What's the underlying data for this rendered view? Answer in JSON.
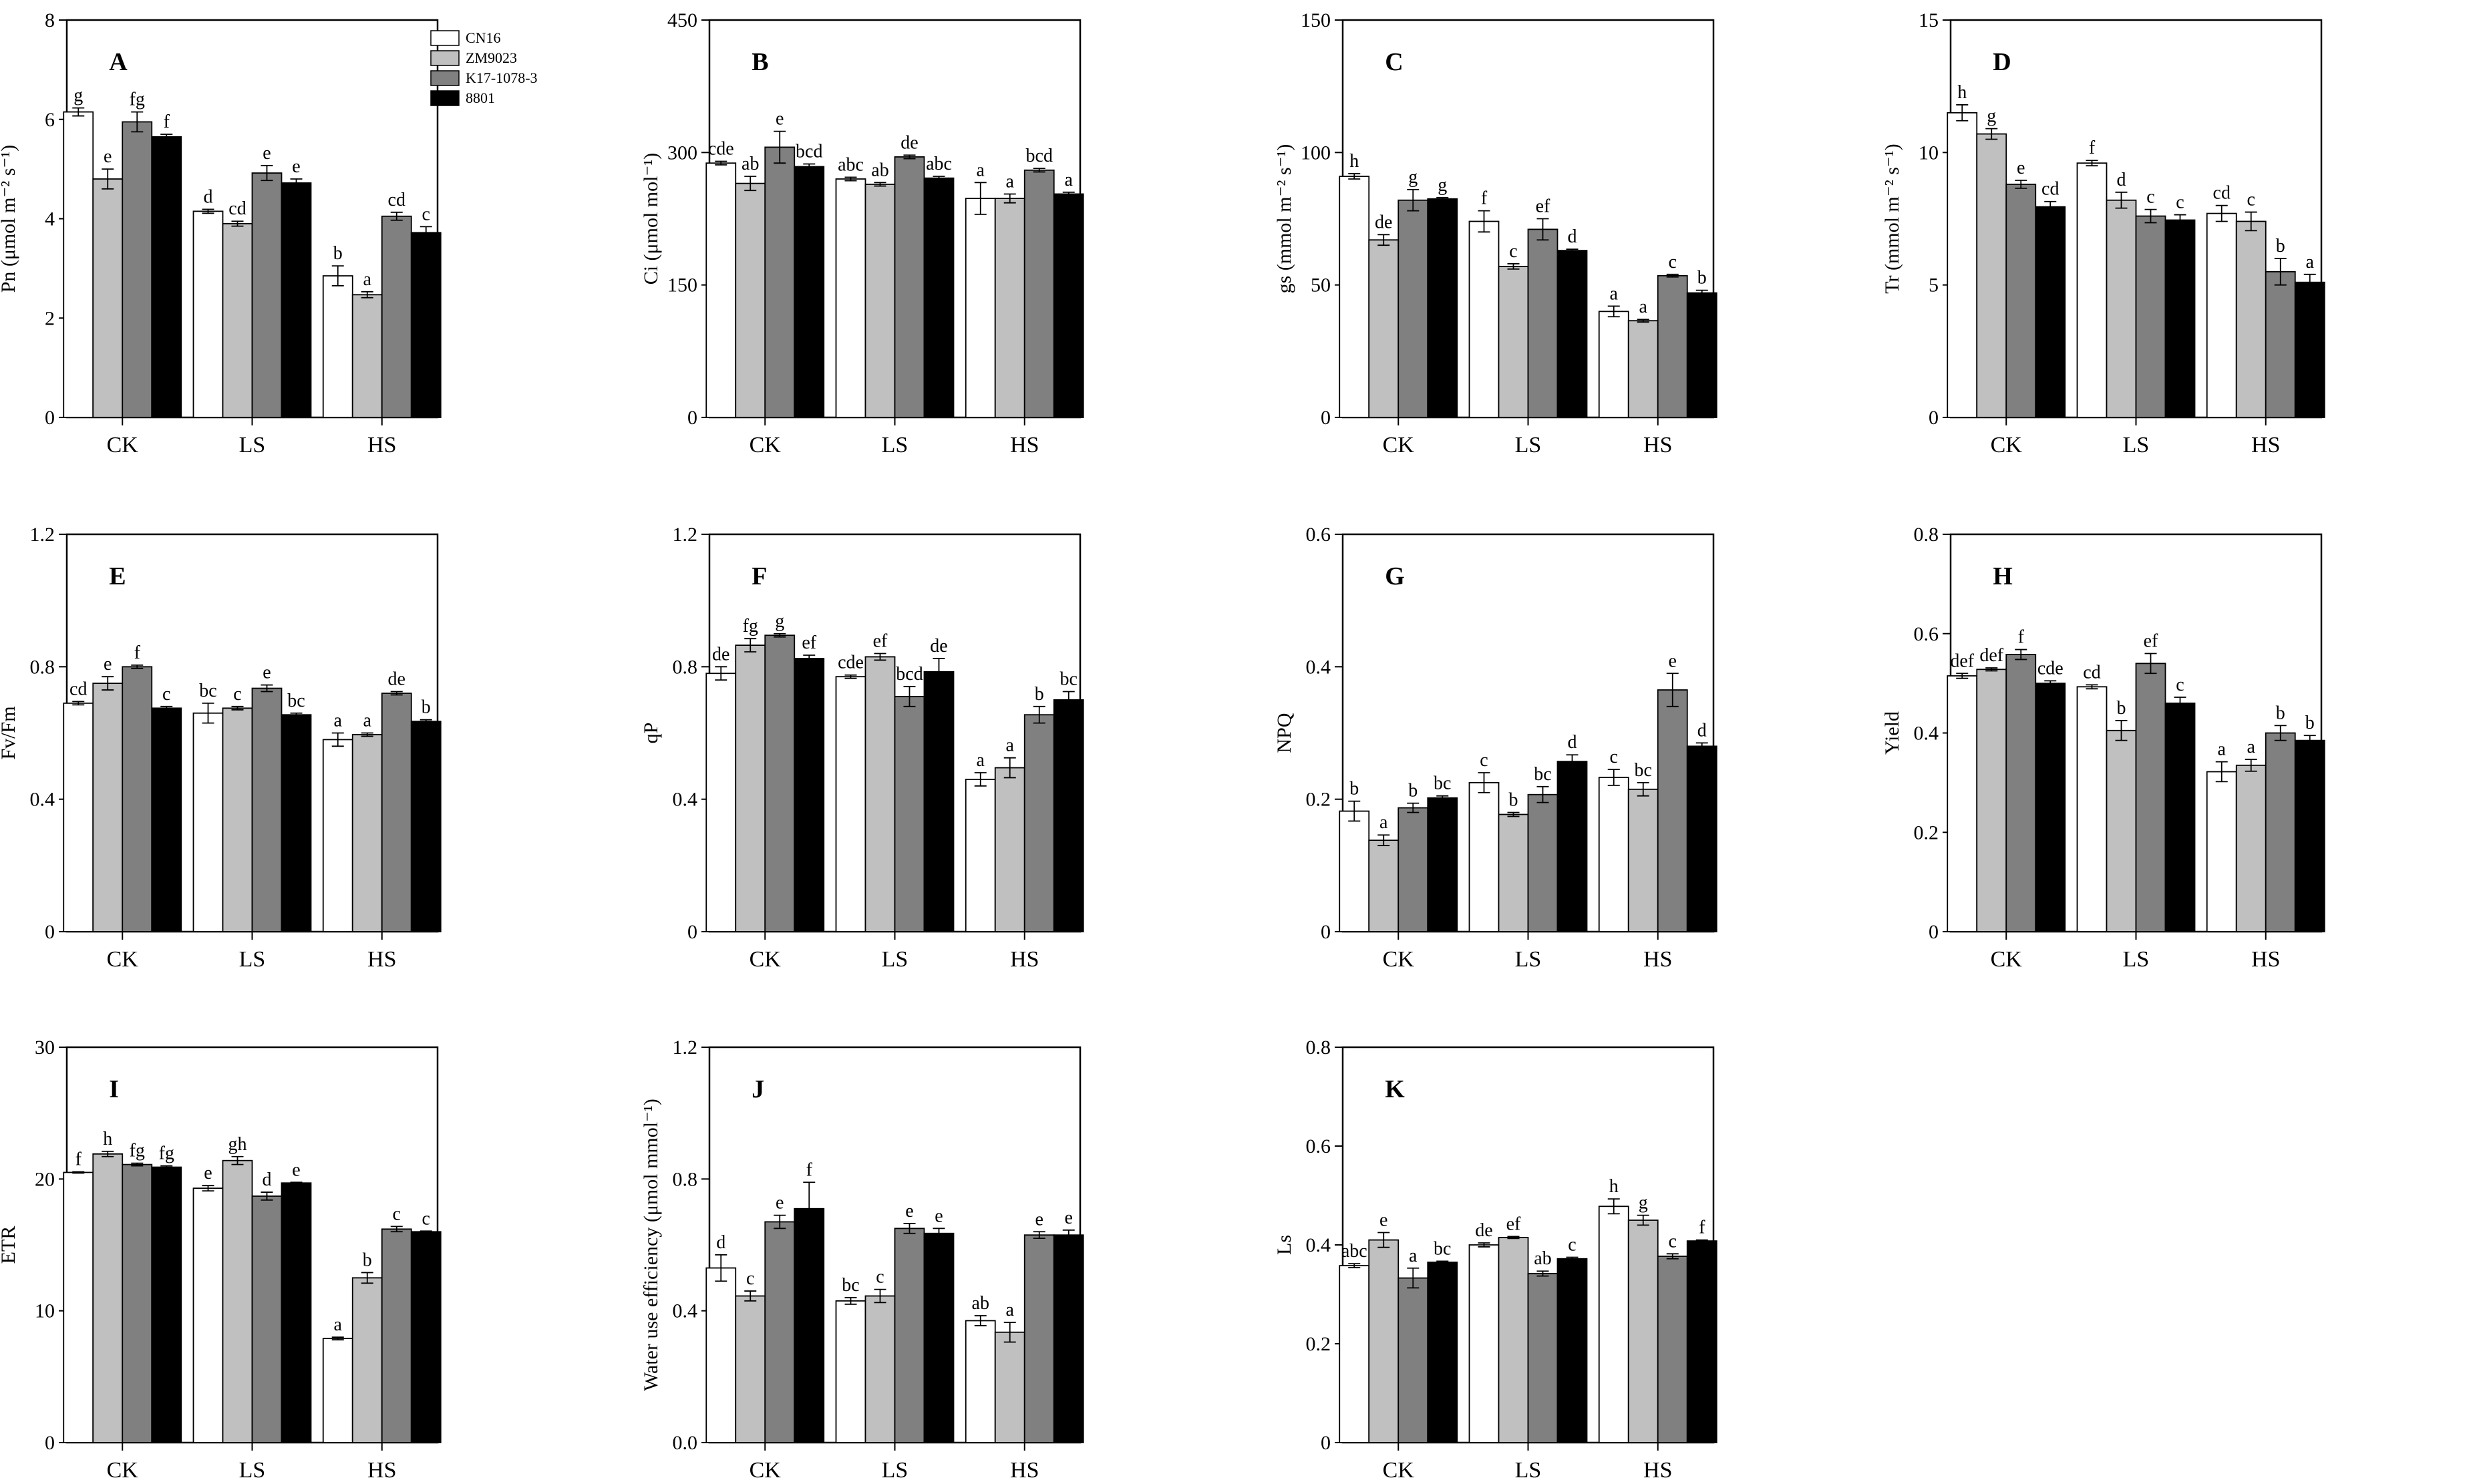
{
  "chart_data": [
    {
      "type": "bar",
      "panel": "A",
      "ylabel": "Pn (μmol m⁻² s⁻¹)",
      "ylim": [
        0,
        8
      ],
      "yticks": [
        0,
        2,
        4,
        6,
        8
      ],
      "categories": [
        "CK",
        "LS",
        "HS"
      ],
      "series": [
        {
          "name": "CN16",
          "values": [
            6.15,
            4.15,
            2.85
          ],
          "errors": [
            0.08,
            0.04,
            0.2
          ]
        },
        {
          "name": "ZM9023",
          "values": [
            4.8,
            3.9,
            2.47
          ],
          "errors": [
            0.2,
            0.05,
            0.06
          ]
        },
        {
          "name": "K17-1078-3",
          "values": [
            5.95,
            4.92,
            4.05
          ],
          "errors": [
            0.2,
            0.15,
            0.08
          ]
        },
        {
          "name": "8801",
          "values": [
            5.65,
            4.72,
            3.72
          ],
          "errors": [
            0.05,
            0.08,
            0.12
          ]
        }
      ],
      "labels": [
        [
          "g",
          "d",
          "b"
        ],
        [
          "e",
          "cd",
          "a"
        ],
        [
          "fg",
          "e",
          "cd"
        ],
        [
          "f",
          "e",
          "c"
        ]
      ]
    },
    {
      "type": "bar",
      "panel": "B",
      "ylabel": "Ci (μmol mol⁻¹)",
      "ylim": [
        0,
        450
      ],
      "yticks": [
        0,
        150,
        300,
        450
      ],
      "categories": [
        "CK",
        "LS",
        "HS"
      ],
      "series": [
        {
          "name": "CN16",
          "values": [
            288,
            270,
            248
          ],
          "errors": [
            2,
            2,
            18
          ]
        },
        {
          "name": "ZM9023",
          "values": [
            265,
            264,
            248
          ],
          "errors": [
            8,
            2,
            5
          ]
        },
        {
          "name": "K17-1078-3",
          "values": [
            306,
            295,
            280
          ],
          "errors": [
            18,
            2,
            2
          ]
        },
        {
          "name": "8801",
          "values": [
            284,
            271,
            253
          ],
          "errors": [
            3,
            2,
            2
          ]
        }
      ],
      "labels": [
        [
          "cde",
          "abc",
          "a"
        ],
        [
          "ab",
          "ab",
          "a"
        ],
        [
          "e",
          "de",
          "bcd"
        ],
        [
          "bcd",
          "abc",
          "a"
        ]
      ]
    },
    {
      "type": "bar",
      "panel": "C",
      "ylabel": "gs (mmol m⁻² s⁻¹)",
      "ylim": [
        0,
        150
      ],
      "yticks": [
        0,
        50,
        100,
        150
      ],
      "categories": [
        "CK",
        "LS",
        "HS"
      ],
      "series": [
        {
          "name": "CN16",
          "values": [
            91,
            74,
            40
          ],
          "errors": [
            1,
            4,
            2
          ]
        },
        {
          "name": "ZM9023",
          "values": [
            67,
            57,
            36.5
          ],
          "errors": [
            2,
            1,
            0.5
          ]
        },
        {
          "name": "K17-1078-3",
          "values": [
            82,
            71,
            53.5
          ],
          "errors": [
            4,
            4,
            0.5
          ]
        },
        {
          "name": "8801",
          "values": [
            82.5,
            63,
            47
          ],
          "errors": [
            0.5,
            0.5,
            1
          ]
        }
      ],
      "labels": [
        [
          "h",
          "f",
          "a"
        ],
        [
          "de",
          "c",
          "a"
        ],
        [
          "g",
          "ef",
          "c"
        ],
        [
          "g",
          "d",
          "b"
        ]
      ]
    },
    {
      "type": "bar",
      "panel": "D",
      "ylabel": "Tr (mmol m⁻² s⁻¹)",
      "ylim": [
        0,
        15
      ],
      "yticks": [
        0,
        5,
        10,
        15
      ],
      "categories": [
        "CK",
        "LS",
        "HS"
      ],
      "series": [
        {
          "name": "CN16",
          "values": [
            11.5,
            9.6,
            7.7
          ],
          "errors": [
            0.3,
            0.1,
            0.3
          ]
        },
        {
          "name": "ZM9023",
          "values": [
            10.7,
            8.2,
            7.4
          ],
          "errors": [
            0.2,
            0.3,
            0.35
          ]
        },
        {
          "name": "K17-1078-3",
          "values": [
            8.8,
            7.6,
            5.5
          ],
          "errors": [
            0.15,
            0.25,
            0.5
          ]
        },
        {
          "name": "8801",
          "values": [
            7.95,
            7.45,
            5.1
          ],
          "errors": [
            0.2,
            0.2,
            0.3
          ]
        }
      ],
      "labels": [
        [
          "h",
          "f",
          "cd"
        ],
        [
          "g",
          "d",
          "c"
        ],
        [
          "e",
          "c",
          "b"
        ],
        [
          "cd",
          "c",
          "a"
        ]
      ]
    },
    {
      "type": "bar",
      "panel": "E",
      "ylabel": "Fv/Fm",
      "ylim": [
        0,
        1.2
      ],
      "yticks": [
        "0",
        "0.4",
        "0.8",
        "1.2"
      ],
      "categories": [
        "CK",
        "LS",
        "HS"
      ],
      "series": [
        {
          "name": "CN16",
          "values": [
            0.69,
            0.66,
            0.58
          ],
          "errors": [
            0.005,
            0.03,
            0.02
          ]
        },
        {
          "name": "ZM9023",
          "values": [
            0.75,
            0.675,
            0.595
          ],
          "errors": [
            0.02,
            0.005,
            0.005
          ]
        },
        {
          "name": "K17-1078-3",
          "values": [
            0.8,
            0.735,
            0.72
          ],
          "errors": [
            0.005,
            0.01,
            0.005
          ]
        },
        {
          "name": "8801",
          "values": [
            0.675,
            0.655,
            0.635
          ],
          "errors": [
            0.005,
            0.005,
            0.005
          ]
        }
      ],
      "labels": [
        [
          "cd",
          "bc",
          "a"
        ],
        [
          "e",
          "c",
          "a"
        ],
        [
          "f",
          "e",
          "de"
        ],
        [
          "c",
          "bc",
          "b"
        ]
      ]
    },
    {
      "type": "bar",
      "panel": "F",
      "ylabel": "qP",
      "ylim": [
        0,
        1.2
      ],
      "yticks": [
        "0",
        "0.4",
        "0.8",
        "1.2"
      ],
      "categories": [
        "CK",
        "LS",
        "HS"
      ],
      "series": [
        {
          "name": "CN16",
          "values": [
            0.78,
            0.77,
            0.46
          ],
          "errors": [
            0.02,
            0.005,
            0.02
          ]
        },
        {
          "name": "ZM9023",
          "values": [
            0.865,
            0.83,
            0.495
          ],
          "errors": [
            0.02,
            0.01,
            0.03
          ]
        },
        {
          "name": "K17-1078-3",
          "values": [
            0.895,
            0.71,
            0.655
          ],
          "errors": [
            0.005,
            0.03,
            0.025
          ]
        },
        {
          "name": "8801",
          "values": [
            0.825,
            0.785,
            0.7
          ],
          "errors": [
            0.01,
            0.04,
            0.025
          ]
        }
      ],
      "labels": [
        [
          "de",
          "cde",
          "a"
        ],
        [
          "fg",
          "ef",
          "a"
        ],
        [
          "g",
          "bcd",
          "b"
        ],
        [
          "ef",
          "de",
          "bc"
        ]
      ]
    },
    {
      "type": "bar",
      "panel": "G",
      "ylabel": "NPQ",
      "ylim": [
        0,
        0.6
      ],
      "yticks": [
        "0",
        "0.2",
        "0.4",
        "0.6"
      ],
      "categories": [
        "CK",
        "LS",
        "HS"
      ],
      "series": [
        {
          "name": "CN16",
          "values": [
            0.182,
            0.225,
            0.233
          ],
          "errors": [
            0.015,
            0.015,
            0.012
          ]
        },
        {
          "name": "ZM9023",
          "values": [
            0.138,
            0.177,
            0.215
          ],
          "errors": [
            0.008,
            0.003,
            0.01
          ]
        },
        {
          "name": "K17-1078-3",
          "values": [
            0.187,
            0.207,
            0.365
          ],
          "errors": [
            0.007,
            0.012,
            0.025
          ]
        },
        {
          "name": "8801",
          "values": [
            0.202,
            0.257,
            0.28
          ],
          "errors": [
            0.003,
            0.01,
            0.005
          ]
        }
      ],
      "labels": [
        [
          "b",
          "c",
          "c"
        ],
        [
          "a",
          "b",
          "bc"
        ],
        [
          "b",
          "bc",
          "e"
        ],
        [
          "bc",
          "d",
          "d"
        ]
      ]
    },
    {
      "type": "bar",
      "panel": "H",
      "ylabel": "Yield",
      "ylim": [
        0,
        0.8
      ],
      "yticks": [
        "0",
        "0.2",
        "0.4",
        "0.6",
        "0.8"
      ],
      "categories": [
        "CK",
        "LS",
        "HS"
      ],
      "series": [
        {
          "name": "CN16",
          "values": [
            0.515,
            0.493,
            0.322
          ],
          "errors": [
            0.005,
            0.004,
            0.02
          ]
        },
        {
          "name": "ZM9023",
          "values": [
            0.528,
            0.405,
            0.335
          ],
          "errors": [
            0.003,
            0.02,
            0.012
          ]
        },
        {
          "name": "K17-1078-3",
          "values": [
            0.558,
            0.54,
            0.4
          ],
          "errors": [
            0.01,
            0.02,
            0.015
          ]
        },
        {
          "name": "8801",
          "values": [
            0.5,
            0.46,
            0.385
          ],
          "errors": [
            0.005,
            0.012,
            0.01
          ]
        }
      ],
      "labels": [
        [
          "def",
          "cd",
          "a"
        ],
        [
          "def",
          "b",
          "a"
        ],
        [
          "f",
          "ef",
          "b"
        ],
        [
          "cde",
          "c",
          "b"
        ]
      ]
    },
    {
      "type": "bar",
      "panel": "I",
      "ylabel": "ETR",
      "ylim": [
        0,
        30
      ],
      "yticks": [
        0,
        10,
        20,
        30
      ],
      "categories": [
        "CK",
        "LS",
        "HS"
      ],
      "series": [
        {
          "name": "CN16",
          "values": [
            20.5,
            19.3,
            7.9
          ],
          "errors": [
            0.05,
            0.2,
            0.1
          ]
        },
        {
          "name": "ZM9023",
          "values": [
            21.9,
            21.4,
            12.5
          ],
          "errors": [
            0.2,
            0.3,
            0.4
          ]
        },
        {
          "name": "K17-1078-3",
          "values": [
            21.1,
            18.7,
            16.2
          ],
          "errors": [
            0.1,
            0.3,
            0.2
          ]
        },
        {
          "name": "8801",
          "values": [
            20.9,
            19.7,
            16.0
          ],
          "errors": [
            0.1,
            0.05,
            0.05
          ]
        }
      ],
      "labels": [
        [
          "f",
          "e",
          "a"
        ],
        [
          "h",
          "gh",
          "b"
        ],
        [
          "fg",
          "d",
          "c"
        ],
        [
          "fg",
          "e",
          "c"
        ]
      ]
    },
    {
      "type": "bar",
      "panel": "J",
      "ylabel": "Water use efficiency (μmol mmol⁻¹)",
      "ylim": [
        0,
        1.2
      ],
      "yticks": [
        "0.0",
        "0.4",
        "0.8",
        "1.2"
      ],
      "categories": [
        "CK",
        "LS",
        "HS"
      ],
      "series": [
        {
          "name": "CN16",
          "values": [
            0.53,
            0.43,
            0.37
          ],
          "errors": [
            0.04,
            0.01,
            0.015
          ]
        },
        {
          "name": "ZM9023",
          "values": [
            0.445,
            0.445,
            0.335
          ],
          "errors": [
            0.015,
            0.02,
            0.03
          ]
        },
        {
          "name": "K17-1078-3",
          "values": [
            0.67,
            0.65,
            0.63
          ],
          "errors": [
            0.02,
            0.015,
            0.01
          ]
        },
        {
          "name": "8801",
          "values": [
            0.71,
            0.635,
            0.63
          ],
          "errors": [
            0.08,
            0.015,
            0.015
          ]
        }
      ],
      "labels": [
        [
          "d",
          "bc",
          "ab"
        ],
        [
          "c",
          "c",
          "a"
        ],
        [
          "e",
          "e",
          "e"
        ],
        [
          "f",
          "e",
          "e"
        ]
      ]
    },
    {
      "type": "bar",
      "panel": "K",
      "ylabel": "Ls",
      "ylim": [
        0,
        0.8
      ],
      "yticks": [
        "0",
        "0.2",
        "0.4",
        "0.6",
        "0.8"
      ],
      "categories": [
        "CK",
        "LS",
        "HS"
      ],
      "series": [
        {
          "name": "CN16",
          "values": [
            0.358,
            0.4,
            0.478
          ],
          "errors": [
            0.004,
            0.004,
            0.015
          ]
        },
        {
          "name": "ZM9023",
          "values": [
            0.41,
            0.415,
            0.45
          ],
          "errors": [
            0.015,
            0.002,
            0.01
          ]
        },
        {
          "name": "K17-1078-3",
          "values": [
            0.333,
            0.342,
            0.377
          ],
          "errors": [
            0.02,
            0.005,
            0.005
          ]
        },
        {
          "name": "8801",
          "values": [
            0.365,
            0.372,
            0.408
          ],
          "errors": [
            0.002,
            0.003,
            0.002
          ]
        }
      ],
      "labels": [
        [
          "abc",
          "de",
          "h"
        ],
        [
          "e",
          "ef",
          "g"
        ],
        [
          "a",
          "ab",
          "c"
        ],
        [
          "bc",
          "c",
          "f"
        ]
      ]
    }
  ],
  "legend": {
    "entries": [
      "CN16",
      "ZM9023",
      "K17-1078-3",
      "8801"
    ]
  },
  "colors": {
    "CN16": "#ffffff",
    "ZM9023": "#c0c0c0",
    "K17-1078-3": "#808080",
    "8801": "#000000"
  }
}
